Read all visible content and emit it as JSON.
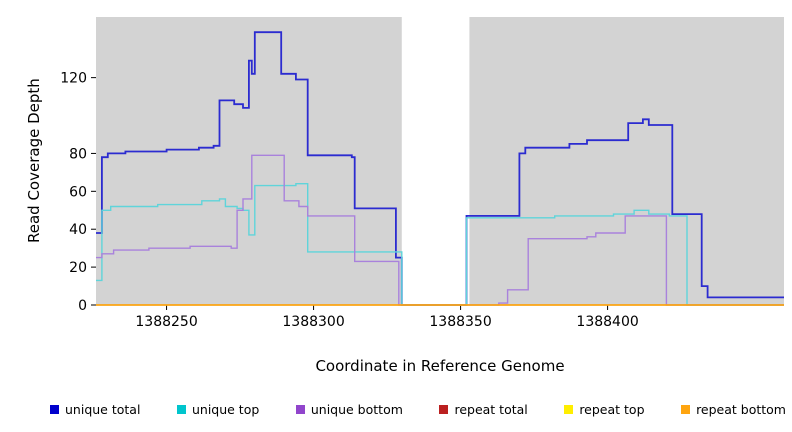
{
  "chart_data": {
    "type": "line",
    "step": true,
    "title": "",
    "xlabel": "Coordinate in Reference Genome",
    "ylabel": "Read Coverage Depth",
    "xlim": [
      1388226,
      1388460
    ],
    "ylim": [
      0,
      152
    ],
    "x_ticks": [
      1388250,
      1388300,
      1388350,
      1388400
    ],
    "y_ticks": [
      0,
      20,
      40,
      60,
      80,
      120
    ],
    "grid": false,
    "legend_position": "bottom",
    "figure_background": "#ffffff",
    "plot_background": "#d3d3d3",
    "gap_region": {
      "x0": 1388330,
      "x1": 1388353,
      "color": "#ffffff"
    },
    "series": [
      {
        "name": "unique total",
        "color": "#2b2bd0",
        "swatch": "#0000cd",
        "line_width": 1.8,
        "points": [
          [
            1388226,
            38
          ],
          [
            1388228,
            78
          ],
          [
            1388230,
            80
          ],
          [
            1388236,
            81
          ],
          [
            1388250,
            82
          ],
          [
            1388261,
            83
          ],
          [
            1388266,
            84
          ],
          [
            1388268,
            108
          ],
          [
            1388273,
            106
          ],
          [
            1388276,
            104
          ],
          [
            1388278,
            129
          ],
          [
            1388279,
            122
          ],
          [
            1388280,
            144
          ],
          [
            1388289,
            122
          ],
          [
            1388294,
            119
          ],
          [
            1388298,
            79
          ],
          [
            1388313,
            78
          ],
          [
            1388314,
            51
          ],
          [
            1388328,
            25
          ],
          [
            1388330,
            0
          ],
          [
            1388352,
            47
          ],
          [
            1388370,
            80
          ],
          [
            1388372,
            83
          ],
          [
            1388387,
            85
          ],
          [
            1388393,
            87
          ],
          [
            1388407,
            96
          ],
          [
            1388412,
            98
          ],
          [
            1388414,
            95
          ],
          [
            1388422,
            48
          ],
          [
            1388432,
            10
          ],
          [
            1388434,
            4
          ]
        ]
      },
      {
        "name": "unique top",
        "color": "#5fd4da",
        "swatch": "#00c5cd",
        "line_width": 1.4,
        "points": [
          [
            1388226,
            13
          ],
          [
            1388228,
            50
          ],
          [
            1388231,
            52
          ],
          [
            1388247,
            53
          ],
          [
            1388262,
            55
          ],
          [
            1388268,
            56
          ],
          [
            1388270,
            52
          ],
          [
            1388274,
            51
          ],
          [
            1388276,
            50
          ],
          [
            1388278,
            37
          ],
          [
            1388280,
            63
          ],
          [
            1388294,
            64
          ],
          [
            1388298,
            28
          ],
          [
            1388330,
            0
          ],
          [
            1388352,
            46
          ],
          [
            1388368,
            46
          ],
          [
            1388382,
            47
          ],
          [
            1388402,
            48
          ],
          [
            1388409,
            50
          ],
          [
            1388414,
            48
          ],
          [
            1388421,
            47
          ],
          [
            1388427,
            0
          ]
        ]
      },
      {
        "name": "unique bottom",
        "color": "#a982dc",
        "swatch": "#9145cc",
        "line_width": 1.4,
        "points": [
          [
            1388226,
            25
          ],
          [
            1388228,
            27
          ],
          [
            1388232,
            29
          ],
          [
            1388244,
            30
          ],
          [
            1388258,
            31
          ],
          [
            1388272,
            30
          ],
          [
            1388274,
            50
          ],
          [
            1388276,
            56
          ],
          [
            1388279,
            79
          ],
          [
            1388290,
            55
          ],
          [
            1388295,
            52
          ],
          [
            1388298,
            47
          ],
          [
            1388313,
            47
          ],
          [
            1388314,
            23
          ],
          [
            1388329,
            0
          ],
          [
            1388363,
            1
          ],
          [
            1388366,
            8
          ],
          [
            1388373,
            35
          ],
          [
            1388393,
            36
          ],
          [
            1388396,
            38
          ],
          [
            1388406,
            47
          ],
          [
            1388419,
            47
          ],
          [
            1388420,
            0
          ]
        ]
      },
      {
        "name": "repeat total",
        "color": "#bb2020",
        "swatch": "#bb2020",
        "line_width": 1.2,
        "points": [
          [
            1388226,
            0
          ]
        ]
      },
      {
        "name": "repeat top",
        "color": "#ffee00",
        "swatch": "#ffee00",
        "line_width": 1.2,
        "points": [
          [
            1388226,
            0
          ]
        ]
      },
      {
        "name": "repeat bottom",
        "color": "#ffa510",
        "swatch": "#ffa510",
        "line_width": 1.5,
        "points": [
          [
            1388226,
            0
          ]
        ]
      }
    ]
  }
}
